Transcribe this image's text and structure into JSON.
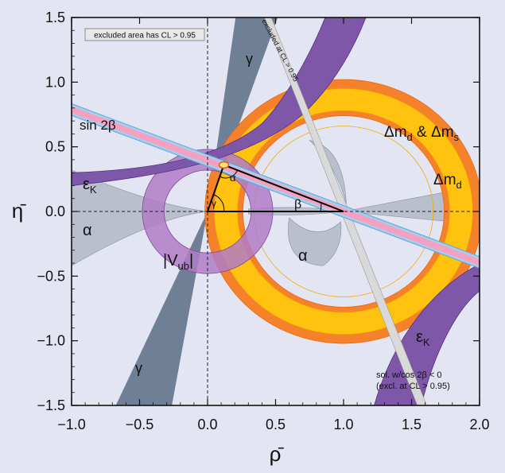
{
  "chart_data": {
    "type": "contour",
    "title": "",
    "xlabel": "ρ̄",
    "ylabel": "η̄",
    "xlim": [
      -1.0,
      2.0
    ],
    "ylim": [
      -1.5,
      1.5
    ],
    "xticks": [
      -1.0,
      -0.5,
      0.0,
      0.5,
      1.0,
      1.5,
      2.0
    ],
    "xtick_labels": [
      "−1.0",
      "−0.5",
      "0.0",
      "0.5",
      "1.0",
      "1.5",
      "2.0"
    ],
    "yticks": [
      -1.5,
      -1.0,
      -0.5,
      0.0,
      0.5,
      1.0,
      1.5
    ],
    "ytick_labels": [
      "−1.5",
      "−1.0",
      "−0.5",
      "0.0",
      "0.5",
      "1.0",
      "1.5"
    ],
    "grid": false,
    "reference_lines": {
      "x": 0.0,
      "y": 0.0,
      "style": "dashed"
    },
    "legend_box": "excluded area has CL > 0.95",
    "apex": {
      "rho": 0.12,
      "eta": 0.36
    },
    "triangle": {
      "vertices": [
        [
          0.0,
          0.0
        ],
        [
          1.0,
          0.0
        ],
        [
          0.12,
          0.36
        ]
      ],
      "angle_labels": [
        "α",
        "β",
        "γ"
      ]
    },
    "constraints": [
      {
        "name": "Δmd & Δms",
        "label": "Δm_d & Δm_s",
        "shape": "ring",
        "center": [
          1.0,
          0.0
        ],
        "r_inner": 0.74,
        "r_outer": 1.02,
        "color": "#f5822a"
      },
      {
        "name": "Δmd",
        "label": "Δm_d",
        "shape": "ring",
        "center": [
          1.0,
          0.0
        ],
        "r_inner": 0.78,
        "r_outer": 0.95,
        "color": "#ffc20e"
      },
      {
        "name": "|Vub|",
        "label": "|V_ub|",
        "shape": "ring",
        "center": [
          0.0,
          0.0
        ],
        "r_inner": 0.32,
        "r_outer": 0.48,
        "color": "#b07cc6"
      },
      {
        "name": "sin 2β",
        "label": "sin 2β",
        "shape": "band",
        "slope_deg": -21.5,
        "color": "#f4a0c0",
        "edge_color": "#5aa7e0"
      },
      {
        "name": "εK",
        "label": "ε_K",
        "shape": "hyperbola-band",
        "color": "#7e57a8"
      },
      {
        "name": "γ",
        "label": "γ",
        "shape": "wedge",
        "angle_deg": 70,
        "color": "#6e7f96"
      },
      {
        "name": "α",
        "label": "α",
        "shape": "region",
        "color": "#b9bfcc"
      },
      {
        "name": "sol. w/cos 2β < 0",
        "label": "excluded at CL > 0.95",
        "shape": "band",
        "color": "#d9d9d9"
      }
    ],
    "annotations": [
      "excluded at CL > 0.95",
      "sol. w/cos 2β < 0",
      "(excl. at CL > 0.95)"
    ]
  }
}
